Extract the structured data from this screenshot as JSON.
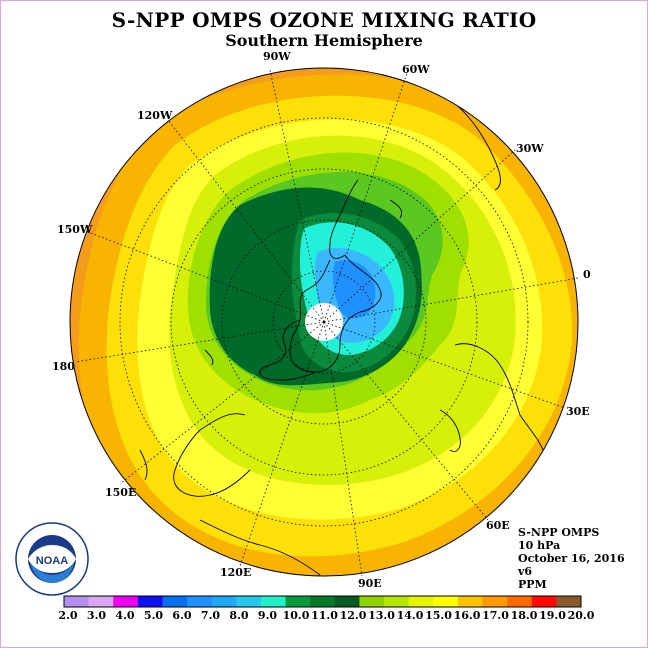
{
  "title": "S-NPP OMPS OZONE MIXING RATIO",
  "subtitle": "Southern Hemisphere",
  "longitude_labels": {
    "w90": "90W",
    "w60": "60W",
    "w30": "30W",
    "e0": "0",
    "e30": "30E",
    "e60": "60E",
    "e90": "90E",
    "e120": "120E",
    "e150": "150E",
    "e180": "180",
    "w150": "150W",
    "w120": "120W"
  },
  "info": {
    "instrument": "S-NPP OMPS",
    "level": "10 hPa",
    "date": "October 16, 2016",
    "version": "v6",
    "units": "PPM"
  },
  "logo": {
    "text": "NOAA",
    "icon": "noaa-logo"
  },
  "colorbar": {
    "ticks": [
      "2.0",
      "3.0",
      "4.0",
      "5.0",
      "6.0",
      "7.0",
      "8.0",
      "9.0",
      "10.0",
      "11.0",
      "12.0",
      "13.0",
      "14.0",
      "15.0",
      "16.0",
      "17.0",
      "18.0",
      "19.0",
      "20.0"
    ],
    "colors": [
      "#b58ff0",
      "#d9a7f2",
      "#f000f0",
      "#1010f0",
      "#0a6ef0",
      "#1e90ff",
      "#1fa8f5",
      "#26c8f0",
      "#22f0c8",
      "#0a9a3c",
      "#007a28",
      "#005c20",
      "#8fd400",
      "#b4e600",
      "#e6f500",
      "#ffff00",
      "#ffc400",
      "#ff9a00",
      "#ff6a00",
      "#ff0a00",
      "#8b5a2b"
    ]
  },
  "map_colors": {
    "outer": "#f49d1c",
    "band_orange": "#f8b400",
    "band_yellow": "#fde008",
    "band_lightyellow": "#ffff33",
    "band_lime": "#d6f00a",
    "band_green_light": "#a0e000",
    "band_green": "#5ac820",
    "band_darkgreen": "#0a8a3c",
    "band_darkest": "#006a2a",
    "cyan": "#22f0d8",
    "blue_light": "#3ab8ff",
    "blue": "#1f90ff"
  }
}
